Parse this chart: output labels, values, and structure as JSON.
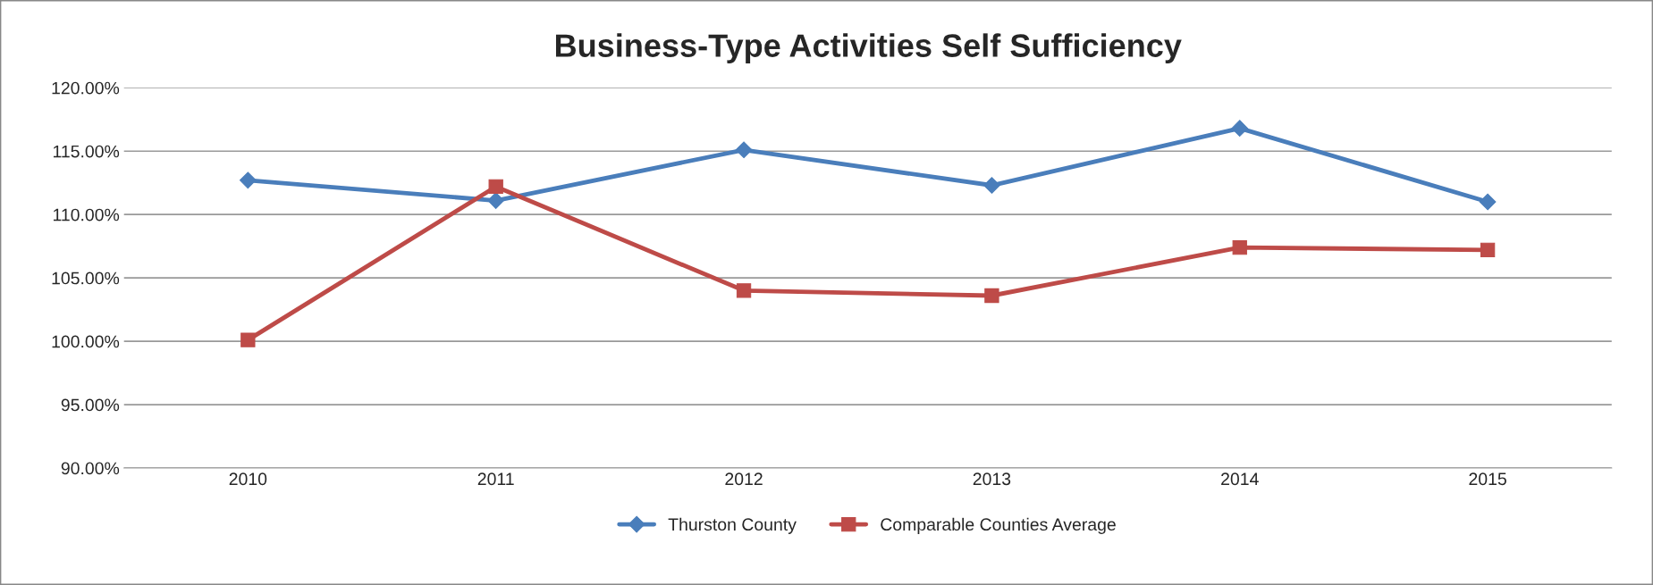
{
  "chart_data": {
    "type": "line",
    "title": "Business-Type Activities Self Sufficiency",
    "categories": [
      "2010",
      "2011",
      "2012",
      "2013",
      "2014",
      "2015"
    ],
    "series": [
      {
        "name": "Thurston County",
        "color": "#4a7ebb",
        "marker": "diamond",
        "values": [
          112.7,
          111.1,
          115.1,
          112.3,
          116.8,
          111.0
        ]
      },
      {
        "name": "Comparable Counties Average",
        "color": "#be4b48",
        "marker": "square",
        "values": [
          100.1,
          112.2,
          104.0,
          103.6,
          107.4,
          107.2
        ]
      }
    ],
    "ylim": [
      90,
      120
    ],
    "yticks": [
      {
        "value": 90,
        "label": "90.00%"
      },
      {
        "value": 95,
        "label": "95.00%"
      },
      {
        "value": 100,
        "label": "100.00%"
      },
      {
        "value": 105,
        "label": "105.00%"
      },
      {
        "value": 110,
        "label": "110.00%"
      },
      {
        "value": 115,
        "label": "115.00%"
      },
      {
        "value": 120,
        "label": "120.00%"
      }
    ],
    "grid": "y",
    "legend": "bottom",
    "line_style": "solid"
  }
}
